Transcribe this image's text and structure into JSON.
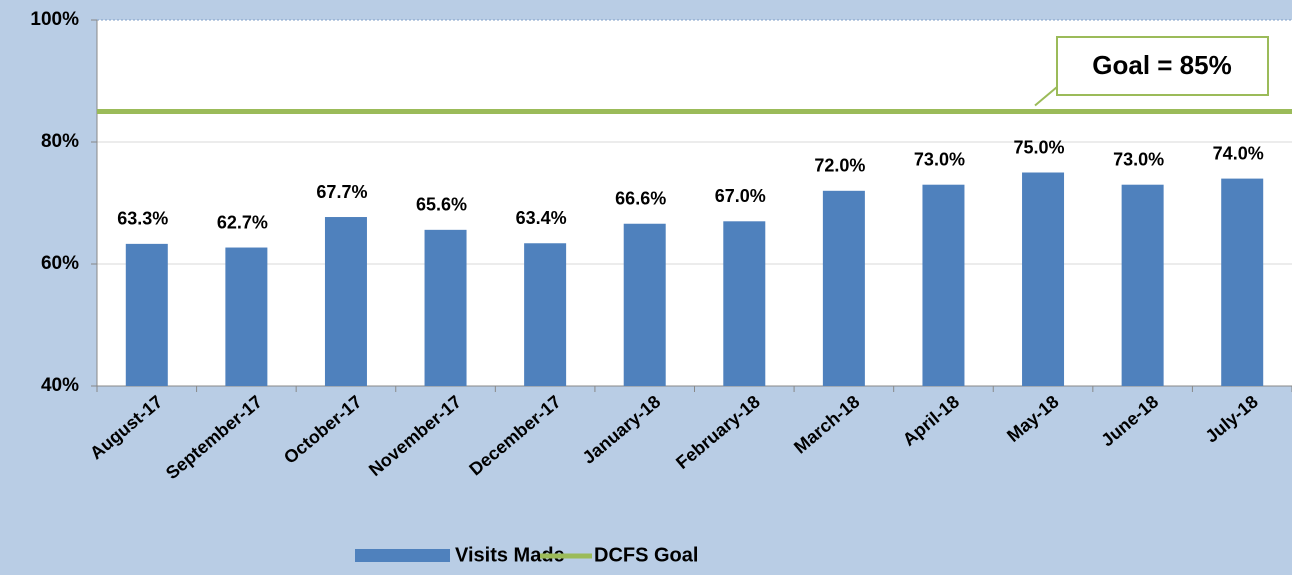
{
  "chart_data": {
    "type": "bar",
    "categories": [
      "August-17",
      "September-17",
      "October-17",
      "November-17",
      "December-17",
      "January-18",
      "February-18",
      "March-18",
      "April-18",
      "May-18",
      "June-18",
      "July-18"
    ],
    "series": [
      {
        "name": "Visits Made",
        "color": "#4f81bd",
        "values": [
          63.3,
          62.7,
          67.7,
          65.6,
          63.4,
          66.6,
          67.0,
          72.0,
          73.0,
          75.0,
          73.0,
          74.0
        ],
        "value_labels": [
          "63.3%",
          "62.7%",
          "67.7%",
          "65.6%",
          "63.4%",
          "66.6%",
          "67.0%",
          "72.0%",
          "73.0%",
          "75.0%",
          "73.0%",
          "74.0%"
        ]
      },
      {
        "name": "DCFS Goal",
        "type": "line",
        "color": "#9bbb59",
        "value": 85
      }
    ],
    "annotation": "Goal = 85%",
    "ylim": [
      40,
      100
    ],
    "yticks": [
      {
        "value": 40,
        "label": "40%"
      },
      {
        "value": 60,
        "label": "60%"
      },
      {
        "value": 80,
        "label": "80%"
      },
      {
        "value": 100,
        "label": "100%"
      }
    ],
    "grid": true,
    "legend": "bottom"
  }
}
